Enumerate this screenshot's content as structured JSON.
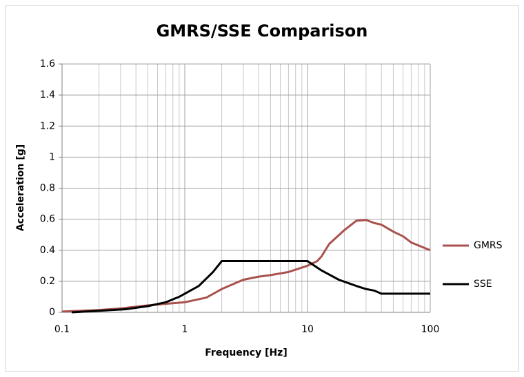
{
  "chart_data": {
    "type": "line",
    "title": "GMRS/SSE Comparison",
    "xlabel": "Frequency [Hz]",
    "ylabel": "Acceleration [g]",
    "xscale": "log",
    "xlim": [
      0.1,
      100
    ],
    "xticks": [
      0.1,
      1,
      10,
      100
    ],
    "ylim": [
      0,
      1.6
    ],
    "yticks": [
      0,
      0.2,
      0.4,
      0.6,
      0.8,
      1,
      1.2,
      1.4,
      1.6
    ],
    "grid": true,
    "legend": "right",
    "series": [
      {
        "name": "GMRS",
        "color": "#a9514d",
        "x": [
          0.1,
          0.2,
          0.3,
          0.5,
          0.7,
          1,
          1.5,
          2,
          3,
          4,
          5,
          7,
          10,
          12,
          13,
          15,
          20,
          25,
          30,
          35,
          40,
          50,
          60,
          70,
          100
        ],
        "values": [
          0.005,
          0.015,
          0.025,
          0.045,
          0.055,
          0.065,
          0.095,
          0.15,
          0.21,
          0.23,
          0.24,
          0.26,
          0.3,
          0.33,
          0.36,
          0.44,
          0.53,
          0.59,
          0.595,
          0.575,
          0.565,
          0.52,
          0.49,
          0.45,
          0.4
        ]
      },
      {
        "name": "SSE",
        "color": "#000000",
        "x": [
          0.12,
          0.2,
          0.33,
          0.5,
          0.7,
          0.9,
          1.3,
          1.7,
          2,
          10,
          13,
          18,
          25,
          30,
          35,
          40,
          100
        ],
        "values": [
          0,
          0.01,
          0.02,
          0.04,
          0.065,
          0.1,
          0.17,
          0.26,
          0.33,
          0.33,
          0.27,
          0.21,
          0.17,
          0.15,
          0.14,
          0.12,
          0.12
        ]
      }
    ]
  }
}
